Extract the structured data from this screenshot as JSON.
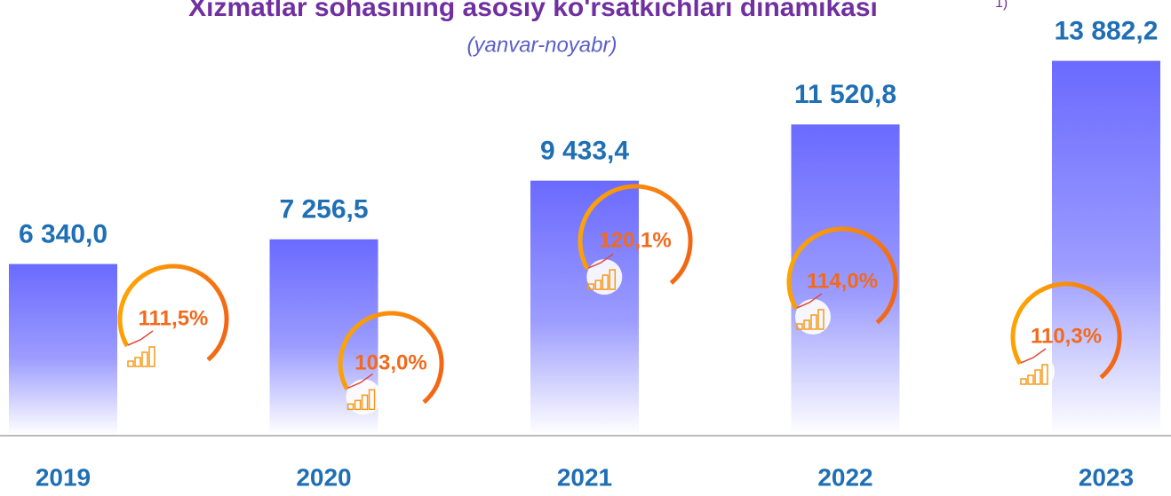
{
  "chart_data": {
    "type": "bar",
    "title": "Xizmatlar sohasining asosiy ko'rsatkichlari dinamikasi",
    "title_note": "1)",
    "subtitle": "(yanvar-noyabr)",
    "categories": [
      "2019",
      "2020",
      "2021",
      "2022",
      "2023"
    ],
    "values": [
      6340.0,
      7256.5,
      9433.4,
      11520.8,
      13882.2
    ],
    "value_labels": [
      "6 340,0",
      "7 256,5",
      "9 433,4",
      "11 520,8",
      "13 882,2"
    ],
    "growth": {
      "values": [
        111.5,
        103.0,
        120.1,
        114.0,
        110.3
      ],
      "value_labels": [
        "111,5%",
        "103,0%",
        "120,1%",
        "114,0%",
        "110,3%"
      ]
    },
    "color": "#6a6aff",
    "ylim": [
      0,
      14000
    ]
  }
}
